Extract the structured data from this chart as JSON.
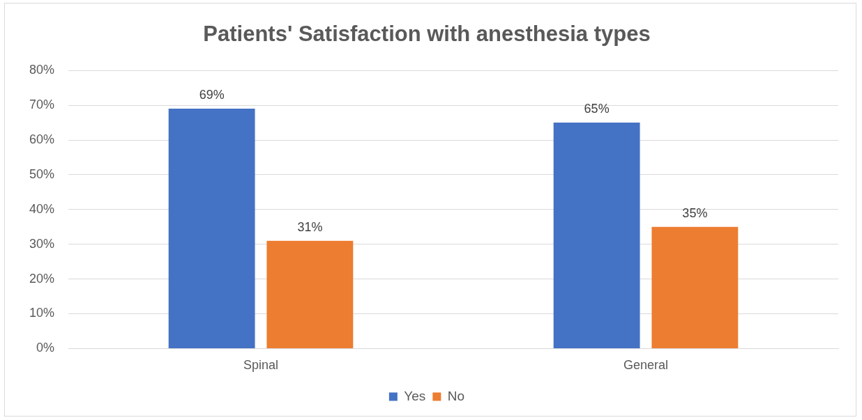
{
  "chart_data": {
    "type": "bar",
    "title": "Patients' Satisfaction with anesthesia types",
    "categories": [
      "Spinal",
      "General"
    ],
    "series": [
      {
        "name": "Yes",
        "color": "#4472c4",
        "values": [
          69,
          65
        ],
        "value_labels": [
          "69%",
          "65%"
        ]
      },
      {
        "name": "No",
        "color": "#ed7d31",
        "values": [
          31,
          35
        ],
        "value_labels": [
          "31%",
          "35%"
        ]
      }
    ],
    "ylim": [
      0,
      80
    ],
    "yticks": [
      {
        "value": 0,
        "label": "0%"
      },
      {
        "value": 10,
        "label": "10%"
      },
      {
        "value": 20,
        "label": "20%"
      },
      {
        "value": 30,
        "label": "30%"
      },
      {
        "value": 40,
        "label": "40%"
      },
      {
        "value": 50,
        "label": "50%"
      },
      {
        "value": 60,
        "label": "60%"
      },
      {
        "value": 70,
        "label": "70%"
      },
      {
        "value": 80,
        "label": "80%"
      }
    ],
    "grid": "y",
    "legend": "bottom"
  }
}
